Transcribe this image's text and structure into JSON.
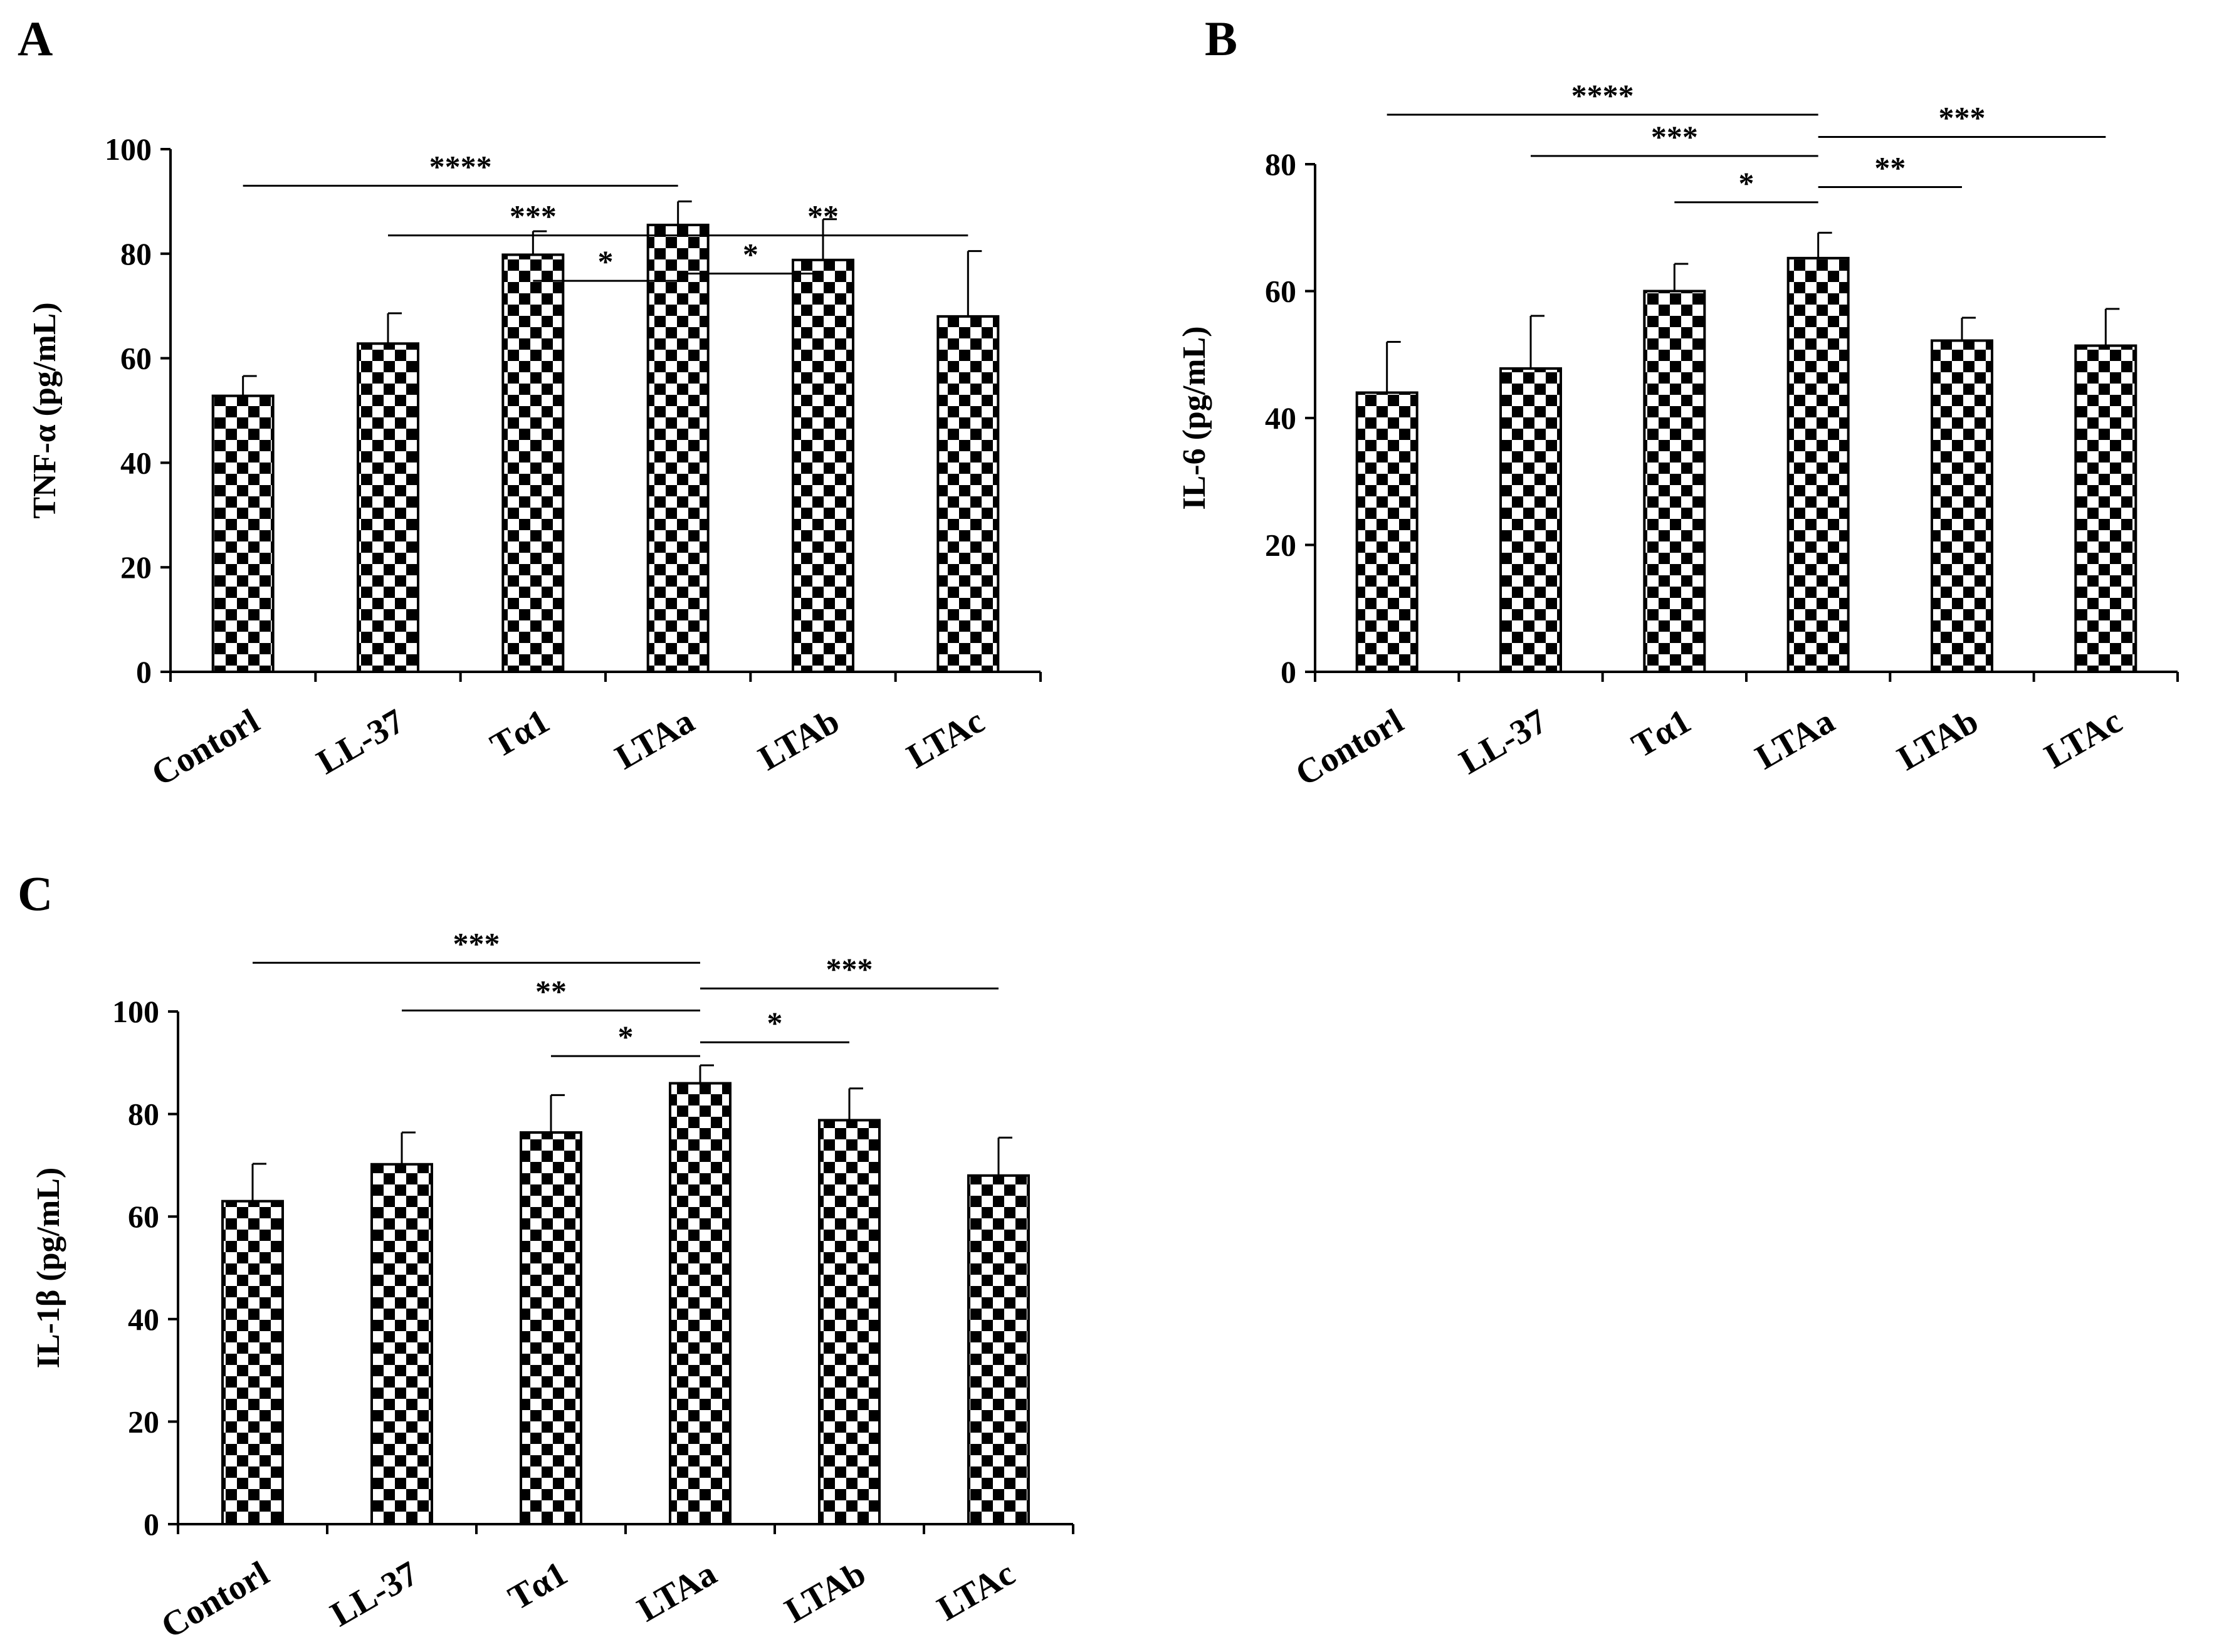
{
  "chart_data": [
    {
      "panel_label": "A",
      "type": "bar",
      "categories": [
        "Contorl",
        "LL-37",
        "Tα1",
        "LTAa",
        "LTAb",
        "LTAc"
      ],
      "values": [
        52.8,
        62.8,
        79.8,
        85.5,
        78.8,
        68.0
      ],
      "errors": [
        3.8,
        5.8,
        4.5,
        4.5,
        7.8,
        12.5
      ],
      "ylabel": "TNF-α (pg/mL)",
      "ylim": [
        0,
        100
      ],
      "yticks": [
        0,
        20,
        40,
        60,
        80,
        100
      ],
      "bar_pattern": "black-white checkerboard",
      "significance": [
        {
          "from": "Contorl",
          "to": "LTAa",
          "label": "****",
          "level": 93
        },
        {
          "from": "LL-37",
          "to": "LTAa",
          "label": "***",
          "level": 83.5
        },
        {
          "from": "LTAa",
          "to": "LTAc",
          "label": "**",
          "level": 83.5
        },
        {
          "from": "Tα1",
          "to": "LTAa",
          "label": "*",
          "level": 74.8
        },
        {
          "from": "LTAa",
          "to": "LTAb",
          "label": "*",
          "level": 76.2
        }
      ]
    },
    {
      "panel_label": "B",
      "type": "bar",
      "categories": [
        "Contorl",
        "LL-37",
        "Tα1",
        "LTAa",
        "LTAb",
        "LTAc"
      ],
      "values": [
        44.0,
        47.8,
        60.0,
        65.2,
        52.2,
        51.4
      ],
      "errors": [
        8.0,
        8.3,
        4.3,
        4.0,
        3.6,
        5.8
      ],
      "ylabel": "IL-6 (pg/mL)",
      "ylim": [
        0,
        80
      ],
      "yticks": [
        0,
        20,
        40,
        60,
        80
      ],
      "bar_pattern": "black-white checkerboard",
      "significance": [
        {
          "from": "Contorl",
          "to": "LTAa",
          "label": "****",
          "level": 87.8
        },
        {
          "from": "LL-37",
          "to": "LTAa",
          "label": "***",
          "level": 81.3
        },
        {
          "from": "LTAa",
          "to": "LTAc",
          "label": "***",
          "level": 84.3
        },
        {
          "from": "Tα1",
          "to": "LTAa",
          "label": "*",
          "level": 74.0
        },
        {
          "from": "LTAa",
          "to": "LTAb",
          "label": "**",
          "level": 76.4
        }
      ]
    },
    {
      "panel_label": "C",
      "type": "bar",
      "categories": [
        "Contorl",
        "LL-37",
        "Tα1",
        "LTAa",
        "LTAb",
        "LTAc"
      ],
      "values": [
        63.0,
        70.2,
        76.4,
        86.0,
        78.8,
        68.0
      ],
      "errors": [
        7.3,
        6.2,
        7.3,
        3.5,
        6.2,
        7.4
      ],
      "ylabel": "IL-1β (pg/mL)",
      "ylim": [
        0,
        100
      ],
      "yticks": [
        0,
        20,
        40,
        60,
        80,
        100
      ],
      "bar_pattern": "black-white checkerboard",
      "significance": [
        {
          "from": "Contorl",
          "to": "LTAa",
          "label": "***",
          "level": 109.5
        },
        {
          "from": "LL-37",
          "to": "LTAa",
          "label": "**",
          "level": 100.2
        },
        {
          "from": "LTAa",
          "to": "LTAc",
          "label": "***",
          "level": 104.5
        },
        {
          "from": "Tα1",
          "to": "LTAa",
          "label": "*",
          "level": 91.3
        },
        {
          "from": "LTAa",
          "to": "LTAb",
          "label": "*",
          "level": 94.0
        }
      ]
    }
  ]
}
